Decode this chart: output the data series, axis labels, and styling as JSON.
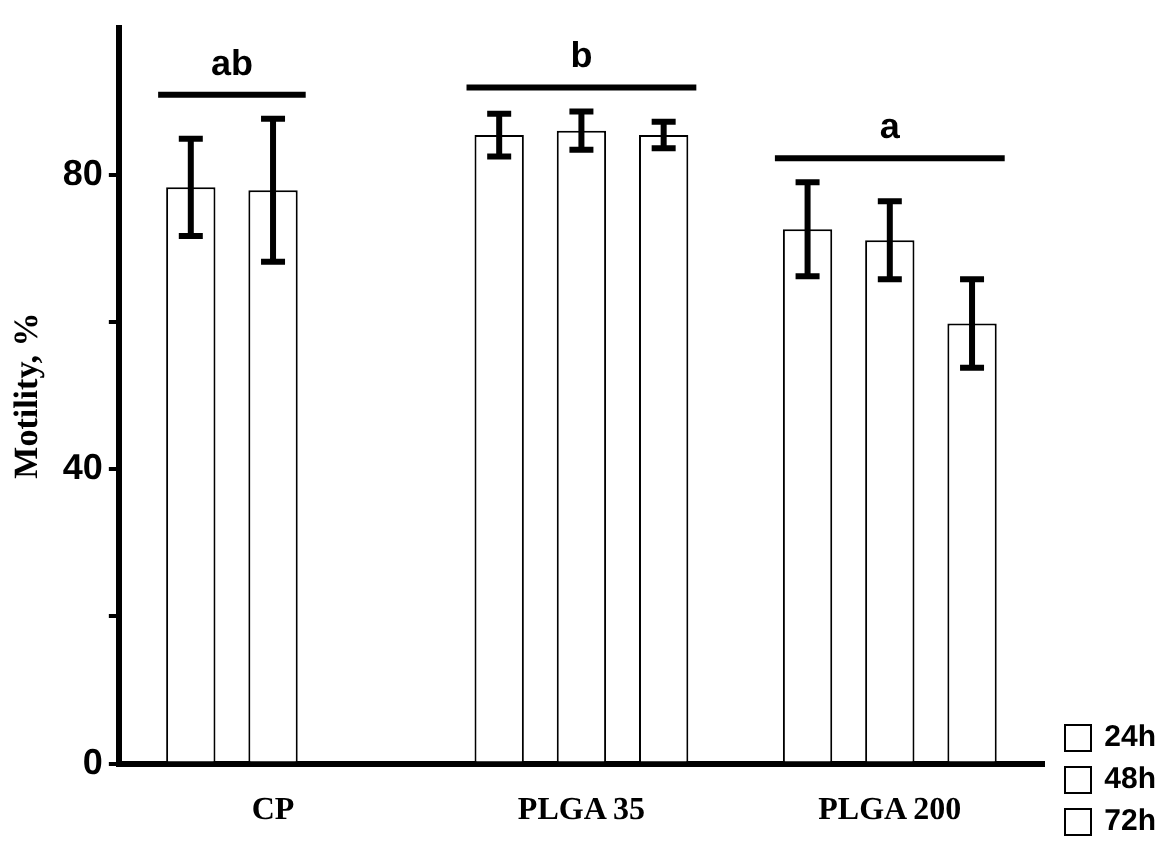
{
  "chart_data": {
    "type": "bar",
    "ylabel": "Motility, %",
    "categories": [
      "CP",
      "PLGA 35",
      "PLGA 200"
    ],
    "series": [
      {
        "name": "24h",
        "color": "#ffffff",
        "values": [
          78.3,
          85.4,
          72.6
        ],
        "errors": [
          6.6,
          2.9,
          6.4
        ]
      },
      {
        "name": "48h",
        "color": "#ffffff",
        "values": [
          77.9,
          86.0,
          71.1
        ],
        "errors": [
          9.7,
          2.6,
          5.3
        ]
      },
      {
        "name": "72h",
        "color": "#ffffff",
        "values": [
          null,
          85.4,
          59.8
        ],
        "errors": [
          null,
          1.8,
          6.0
        ]
      }
    ],
    "ylim": [
      0,
      100
    ],
    "yticks": [
      0,
      {
        "value": 20,
        "label": null
      },
      40,
      {
        "value": 60,
        "label": null
      },
      80
    ],
    "annotations": [
      "ab",
      "b",
      "a"
    ],
    "grid": false,
    "legend": "bottom right"
  }
}
